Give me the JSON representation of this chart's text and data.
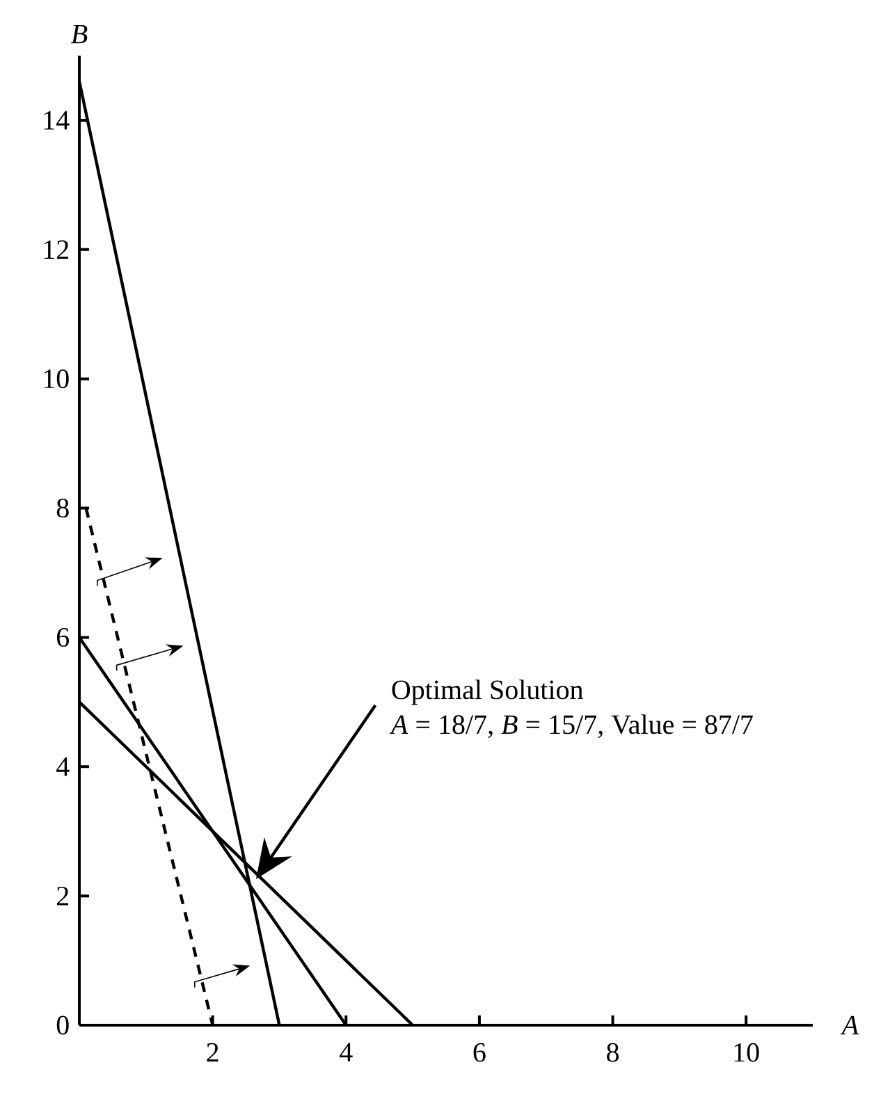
{
  "chart_data": {
    "type": "line",
    "xlabel": "A",
    "ylabel": "B",
    "xlim": [
      0,
      11
    ],
    "ylim": [
      0,
      15
    ],
    "xticks": [
      2,
      4,
      6,
      8,
      10
    ],
    "yticks": [
      0,
      2,
      4,
      6,
      8,
      10,
      12,
      14
    ],
    "series": [
      {
        "x": [
          0,
          3
        ],
        "values": [
          14.6,
          0
        ],
        "color": "#000000",
        "line_style": "solid"
      },
      {
        "x": [
          0,
          4
        ],
        "values": [
          6,
          0
        ],
        "color": "#000000",
        "line_style": "solid"
      },
      {
        "x": [
          0,
          5
        ],
        "values": [
          5,
          0
        ],
        "color": "#000000",
        "line_style": "solid"
      },
      {
        "x": [
          0.1,
          2
        ],
        "values": [
          8,
          0
        ],
        "color": "#000000",
        "line_style": "dashed"
      }
    ],
    "annotations": [
      "Optimal Solution",
      "*A* = 18/7, *B* = 15/7, Value = 87/7"
    ]
  }
}
